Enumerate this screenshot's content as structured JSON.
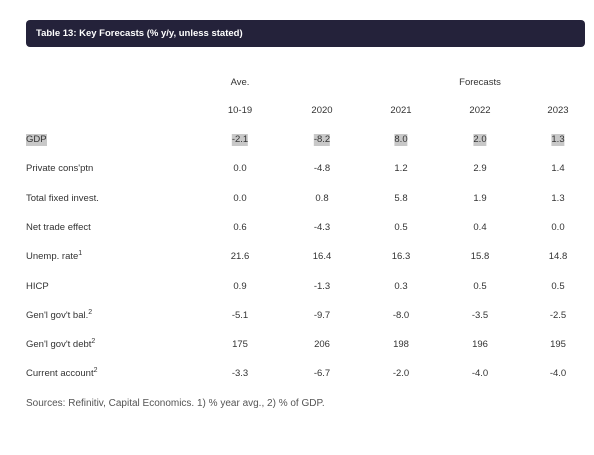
{
  "title": "Table 13: Key Forecasts (% y/y, unless stated)",
  "header": {
    "group_left": "Ave.",
    "group_right": "Forecasts",
    "columns": [
      "10-19",
      "2020",
      "2021",
      "2022",
      "2023"
    ]
  },
  "rows": [
    {
      "label": "GDP",
      "values": [
        "-2.1",
        "-8.2",
        "8.0",
        "2.0",
        "1.3"
      ]
    },
    {
      "label": "Private cons'ptn",
      "values": [
        "0.0",
        "-4.8",
        "1.2",
        "2.9",
        "1.4"
      ]
    },
    {
      "label": "Total fixed invest.",
      "values": [
        "0.0",
        "0.8",
        "5.8",
        "1.9",
        "1.3"
      ]
    },
    {
      "label": "Net trade effect",
      "values": [
        "0.6",
        "-4.3",
        "0.5",
        "0.4",
        "0.0"
      ]
    },
    {
      "label": "Unemp. rate",
      "sup": "1",
      "values": [
        "21.6",
        "16.4",
        "16.3",
        "15.8",
        "14.8"
      ]
    },
    {
      "label": "HICP",
      "values": [
        "0.9",
        "-1.3",
        "0.3",
        "0.5",
        "0.5"
      ]
    },
    {
      "label": "Gen'l gov't bal.",
      "sup": "2",
      "values": [
        "-5.1",
        "-9.7",
        "-8.0",
        "-3.5",
        "-2.5"
      ]
    },
    {
      "label": "Gen'l gov't debt",
      "sup": "2",
      "values": [
        "175",
        "206",
        "198",
        "196",
        "195"
      ]
    },
    {
      "label": "Current account",
      "sup": "2",
      "values": [
        "-3.3",
        "-6.7",
        "-2.0",
        "-4.0",
        "-4.0"
      ]
    }
  ],
  "source": "Sources: Refinitiv, Capital Economics. 1) % year avg., 2) % of GDP."
}
